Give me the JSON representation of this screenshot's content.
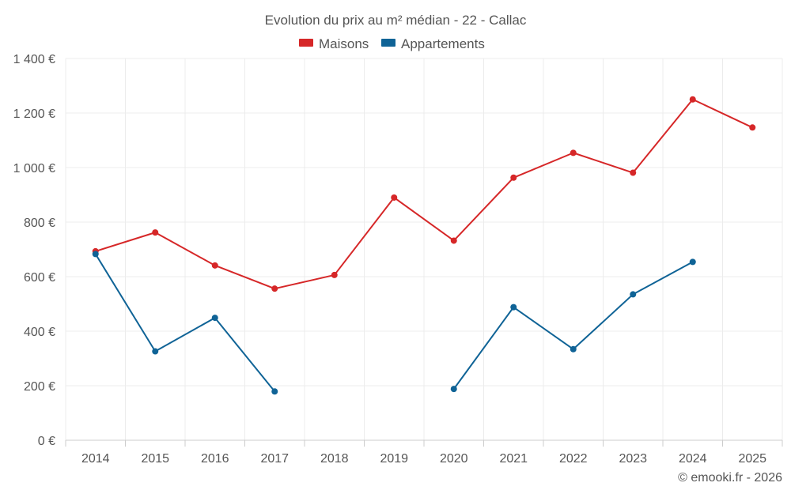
{
  "chart_data": {
    "type": "line",
    "title": "Evolution du prix au m² médian - 22 - Callac",
    "xlabel": "",
    "ylabel": "",
    "categories": [
      "2014",
      "2015",
      "2016",
      "2017",
      "2018",
      "2019",
      "2020",
      "2021",
      "2022",
      "2023",
      "2024",
      "2025"
    ],
    "ylim": [
      0,
      1400
    ],
    "yticks": [
      0,
      200,
      400,
      600,
      800,
      1000,
      1200,
      1400
    ],
    "ytick_labels": [
      "0 €",
      "200 €",
      "400 €",
      "600 €",
      "800 €",
      "1 000 €",
      "1 200 €",
      "1 400 €"
    ],
    "grid": true,
    "legend_position": "top-center",
    "series": [
      {
        "name": "Maisons",
        "color": "#d62728",
        "values": [
          693,
          762,
          641,
          556,
          606,
          890,
          732,
          963,
          1054,
          981,
          1250,
          1147
        ]
      },
      {
        "name": "Appartements",
        "color": "#0f6396",
        "values": [
          683,
          326,
          449,
          179,
          null,
          null,
          188,
          488,
          334,
          535,
          654,
          null
        ]
      }
    ]
  },
  "credit": "© emooki.fr - 2026"
}
